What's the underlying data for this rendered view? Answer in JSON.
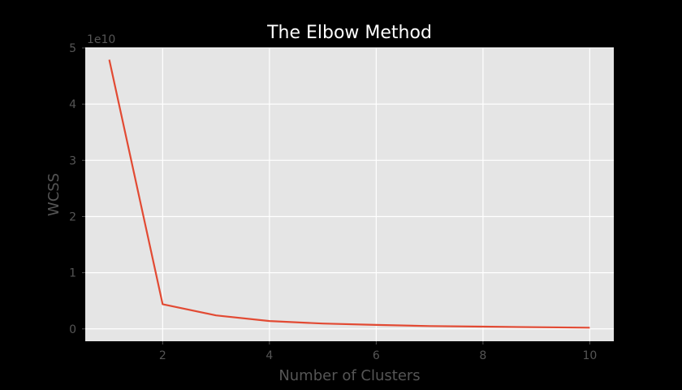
{
  "chart_data": {
    "type": "line",
    "title": "The Elbow Method",
    "xlabel": "Number of Clusters",
    "ylabel": "WCSS",
    "y_offset_label": "1e10",
    "xlim": [
      0.55,
      10.45
    ],
    "ylim": [
      -0.22,
      5.0
    ],
    "x_ticks": [
      2,
      4,
      6,
      8,
      10
    ],
    "x_tick_labels": [
      "2",
      "4",
      "6",
      "8",
      "10"
    ],
    "y_ticks": [
      0,
      1,
      2,
      3,
      4,
      5
    ],
    "y_tick_labels": [
      "0",
      "1",
      "2",
      "3",
      "4",
      "5"
    ],
    "grid": true,
    "legend": false,
    "colors": {
      "background": "#000000",
      "plot_area": "#e5e5e5",
      "grid": "#ffffff",
      "line": "#e24a33",
      "tick_text": "#555555",
      "title_text": "#ffffff"
    },
    "series": [
      {
        "x": [
          1,
          2,
          3,
          4,
          5,
          6,
          7,
          8,
          9,
          10
        ],
        "y": [
          4.79,
          0.44,
          0.24,
          0.14,
          0.095,
          0.07,
          0.05,
          0.04,
          0.03,
          0.022
        ]
      }
    ]
  }
}
